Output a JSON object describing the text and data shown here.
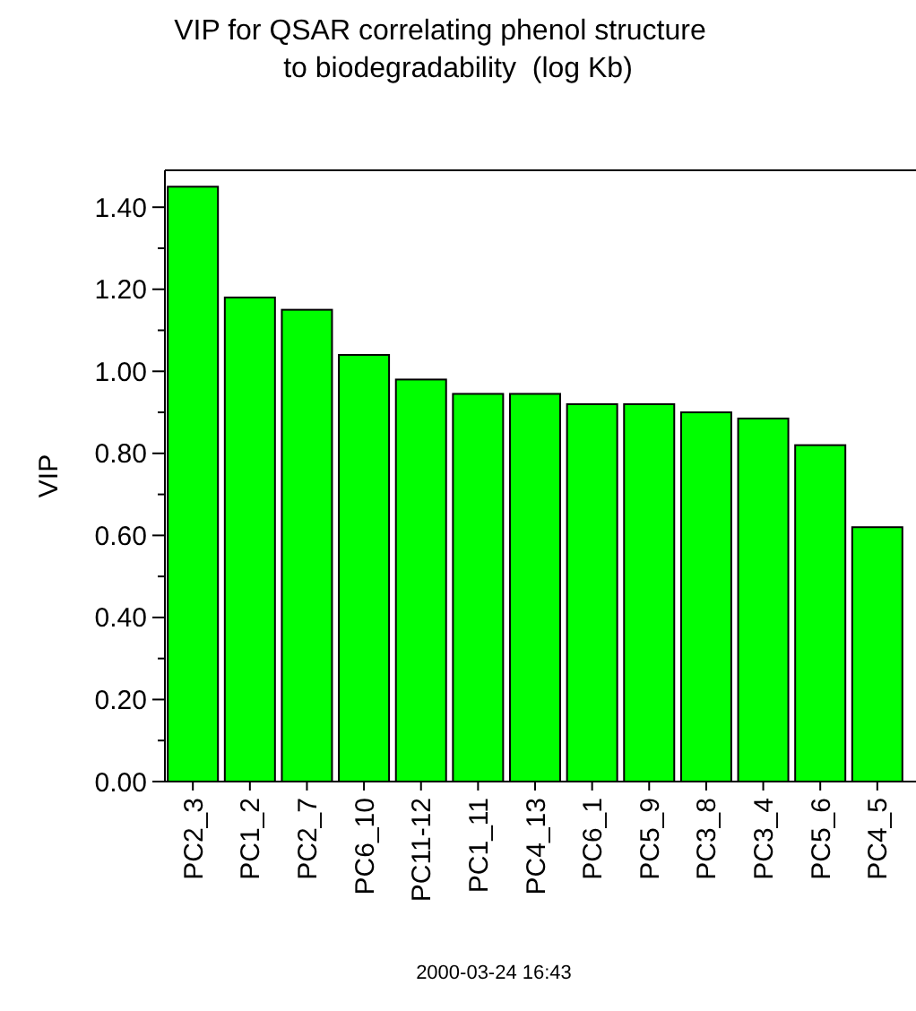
{
  "chart_data": {
    "type": "bar",
    "title": "VIP for QSAR correlating phenol structure\nto biodegradability  (log Kb)",
    "ylabel": "VIP",
    "categories": [
      "PC2_3",
      "PC1_2",
      "PC2_7",
      "PC6_10",
      "PC11-12",
      "PC1_11",
      "PC4_13",
      "PC6_1",
      "PC5_9",
      "PC3_8",
      "PC3_4",
      "PC5_6",
      "PC4_5"
    ],
    "values": [
      1.45,
      1.18,
      1.15,
      1.04,
      0.98,
      0.945,
      0.945,
      0.92,
      0.92,
      0.9,
      0.885,
      0.82,
      0.62
    ],
    "color": "#00ff00",
    "ylim": [
      0,
      1.49
    ],
    "yticks": [
      {
        "value": 0,
        "label": "0.00"
      },
      {
        "value": 0.1,
        "label": null
      },
      {
        "value": 0.2,
        "label": "0.20"
      },
      {
        "value": 0.3,
        "label": null
      },
      {
        "value": 0.4,
        "label": "0.40"
      },
      {
        "value": 0.5,
        "label": null
      },
      {
        "value": 0.6,
        "label": "0.60"
      },
      {
        "value": 0.7,
        "label": null
      },
      {
        "value": 0.8,
        "label": "0.80"
      },
      {
        "value": 0.9,
        "label": null
      },
      {
        "value": 1.0,
        "label": "1.00"
      },
      {
        "value": 1.1,
        "label": null
      },
      {
        "value": 1.2,
        "label": "1.20"
      },
      {
        "value": 1.3,
        "label": null
      },
      {
        "value": 1.4,
        "label": "1.40"
      }
    ],
    "annotations": [
      "2000-03-24 16:43"
    ]
  }
}
